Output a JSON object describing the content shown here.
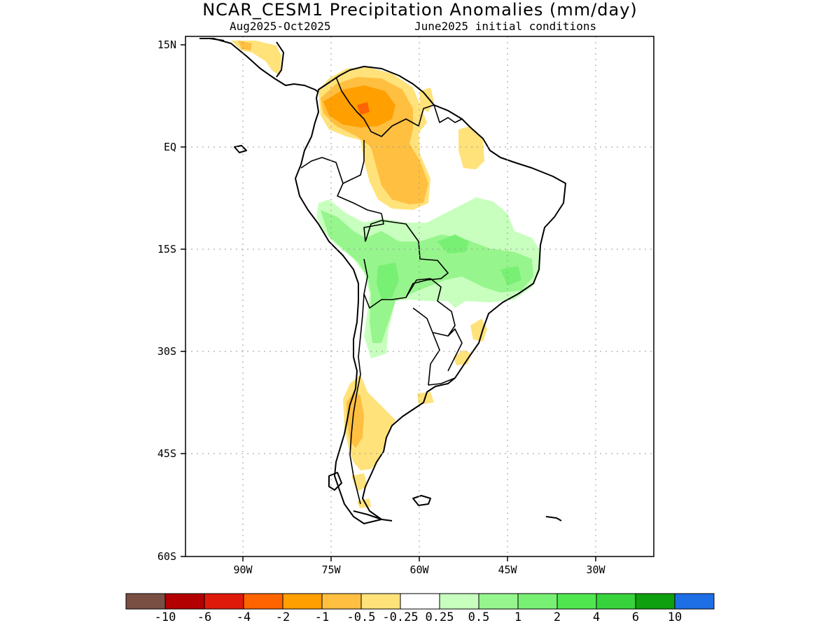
{
  "title": "NCAR_CESM1 Precipitation Anomalies (mm/day)",
  "subtitle_left": "Aug2025-Oct2025",
  "subtitle_right": "June2025 initial conditions",
  "map": {
    "region": "South America",
    "lon_range": [
      -100,
      -20
    ],
    "lat_range": [
      -60,
      15
    ],
    "lat_ticks": [
      "15N",
      "EQ",
      "15S",
      "30S",
      "45S",
      "60S"
    ],
    "lon_ticks": [
      "90W",
      "75W",
      "60W",
      "45W",
      "30W"
    ],
    "gridlines": true
  },
  "colorbar": {
    "colors": [
      "#7a4f43",
      "#b30000",
      "#e01a0a",
      "#ff6400",
      "#ff9f00",
      "#ffbf40",
      "#ffe27a",
      "#ffffff",
      "#c8ffbe",
      "#96f58c",
      "#78f073",
      "#50e650",
      "#37d23c",
      "#0fa00f",
      "#1e6ee6"
    ],
    "labels": [
      "-10",
      "-6",
      "-4",
      "-2",
      "-1",
      "-0.5",
      "-0.25",
      "0.25",
      "0.5",
      "1",
      "2",
      "4",
      "6",
      "10"
    ]
  }
}
